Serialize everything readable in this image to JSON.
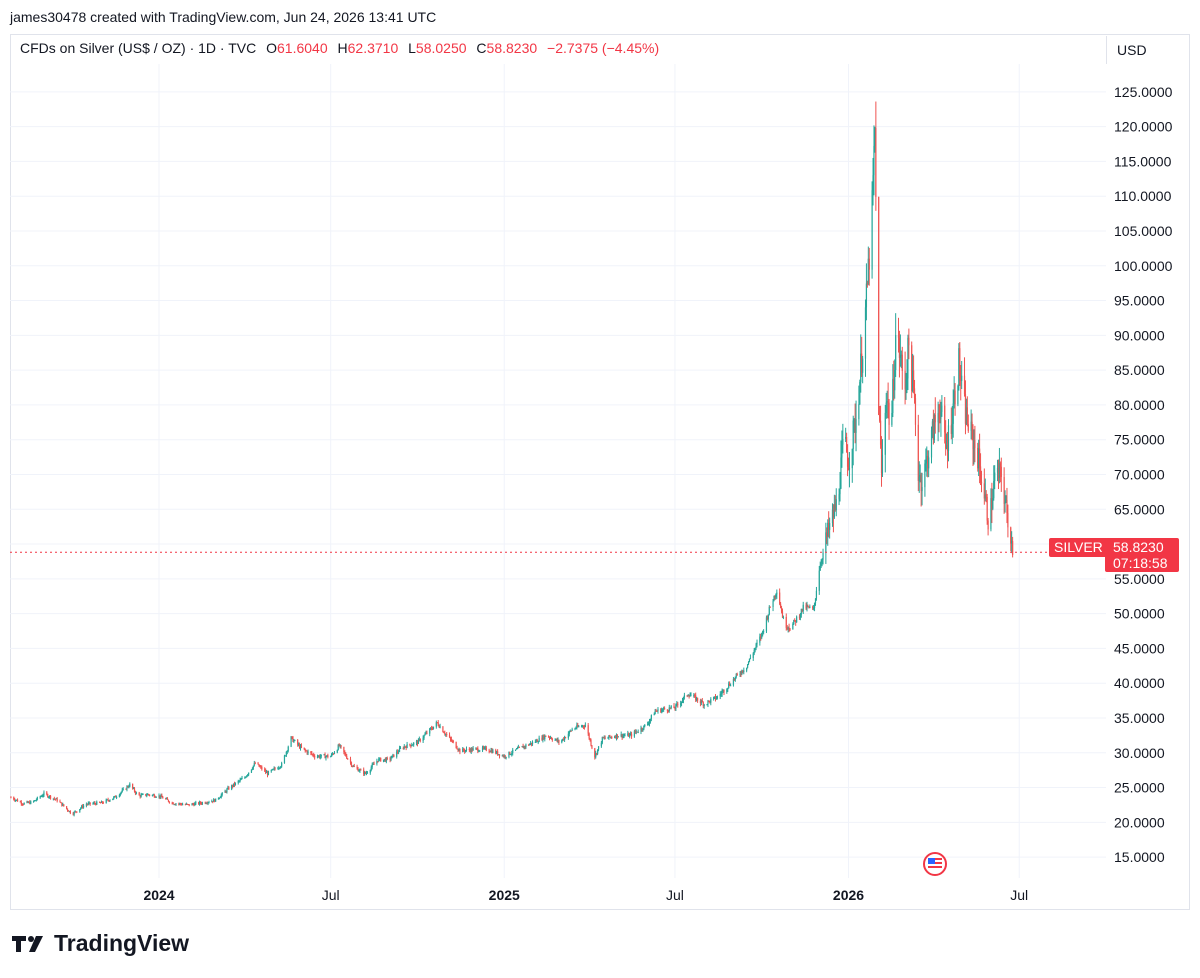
{
  "created_by": "james30478 created with TradingView.com, Jun 24, 2026 13:41 UTC",
  "legend": {
    "symbol": "CFDs on Silver (US$ / OZ) · 1D · TVC",
    "open_label": "O",
    "open": "61.6040",
    "high_label": "H",
    "high": "62.3710",
    "low_label": "L",
    "low": "58.0250",
    "close_label": "C",
    "close": "58.8230",
    "change": "−2.7375 (−4.45%)"
  },
  "currency": "USD",
  "price_tag": {
    "name": "SILVER",
    "price": "58.8230",
    "countdown": "07:18:58"
  },
  "brand": "TradingView",
  "colors": {
    "up": "#26a69a",
    "down": "#ef5350",
    "grid": "#f0f3fa",
    "last": "#f23645"
  },
  "chart_data": {
    "type": "candlestick",
    "y_ticks": [
      "15.0000",
      "20.0000",
      "25.0000",
      "30.0000",
      "35.0000",
      "40.0000",
      "45.0000",
      "50.0000",
      "55.0000",
      "60.0000",
      "65.0000",
      "70.0000",
      "75.0000",
      "80.0000",
      "85.0000",
      "90.0000",
      "95.0000",
      "100.0000",
      "105.0000",
      "110.0000",
      "115.0000",
      "120.0000",
      "125.0000"
    ],
    "ylim": [
      12,
      129
    ],
    "x_ticks": [
      {
        "label": "2024",
        "date": "2024-01-01",
        "bold": true
      },
      {
        "label": "Jul",
        "date": "2024-07-01",
        "bold": false
      },
      {
        "label": "2025",
        "date": "2025-01-01",
        "bold": true
      },
      {
        "label": "Jul",
        "date": "2025-07-01",
        "bold": false
      },
      {
        "label": "2026",
        "date": "2026-01-01",
        "bold": true
      },
      {
        "label": "Jul",
        "date": "2026-07-01",
        "bold": false
      }
    ],
    "xlim": [
      "2023-07-27",
      "2026-10-01"
    ],
    "last_price": 58.823,
    "series": [
      {
        "date": "2023-07-28",
        "close": 23.6
      },
      {
        "date": "2023-08-10",
        "close": 22.7
      },
      {
        "date": "2023-08-20",
        "close": 22.9
      },
      {
        "date": "2023-09-01",
        "close": 24.1
      },
      {
        "date": "2023-09-15",
        "close": 23.2
      },
      {
        "date": "2023-10-01",
        "close": 21.2
      },
      {
        "date": "2023-10-15",
        "close": 22.6
      },
      {
        "date": "2023-11-01",
        "close": 22.8
      },
      {
        "date": "2023-11-15",
        "close": 23.6
      },
      {
        "date": "2023-12-01",
        "close": 25.4
      },
      {
        "date": "2023-12-10",
        "close": 23.8
      },
      {
        "date": "2023-12-20",
        "close": 24.0
      },
      {
        "date": "2024-01-01",
        "close": 23.8
      },
      {
        "date": "2024-01-15",
        "close": 22.8
      },
      {
        "date": "2024-02-01",
        "close": 22.5
      },
      {
        "date": "2024-02-15",
        "close": 22.8
      },
      {
        "date": "2024-03-01",
        "close": 23.2
      },
      {
        "date": "2024-03-15",
        "close": 24.9
      },
      {
        "date": "2024-04-01",
        "close": 26.5
      },
      {
        "date": "2024-04-12",
        "close": 28.5
      },
      {
        "date": "2024-04-25",
        "close": 27.0
      },
      {
        "date": "2024-05-10",
        "close": 28.3
      },
      {
        "date": "2024-05-20",
        "close": 32.1
      },
      {
        "date": "2024-06-01",
        "close": 30.5
      },
      {
        "date": "2024-06-15",
        "close": 29.5
      },
      {
        "date": "2024-07-01",
        "close": 29.5
      },
      {
        "date": "2024-07-10",
        "close": 31.0
      },
      {
        "date": "2024-07-25",
        "close": 28.0
      },
      {
        "date": "2024-08-07",
        "close": 27.0
      },
      {
        "date": "2024-08-20",
        "close": 29.0
      },
      {
        "date": "2024-09-01",
        "close": 29.0
      },
      {
        "date": "2024-09-15",
        "close": 30.8
      },
      {
        "date": "2024-10-01",
        "close": 31.5
      },
      {
        "date": "2024-10-22",
        "close": 34.3
      },
      {
        "date": "2024-11-01",
        "close": 32.5
      },
      {
        "date": "2024-11-15",
        "close": 30.3
      },
      {
        "date": "2024-12-01",
        "close": 30.5
      },
      {
        "date": "2024-12-15",
        "close": 30.5
      },
      {
        "date": "2025-01-01",
        "close": 29.5
      },
      {
        "date": "2025-01-15",
        "close": 30.5
      },
      {
        "date": "2025-02-01",
        "close": 31.5
      },
      {
        "date": "2025-02-15",
        "close": 32.5
      },
      {
        "date": "2025-03-01",
        "close": 31.5
      },
      {
        "date": "2025-03-15",
        "close": 33.5
      },
      {
        "date": "2025-03-28",
        "close": 34.0
      },
      {
        "date": "2025-04-07",
        "close": 29.5
      },
      {
        "date": "2025-04-15",
        "close": 32.0
      },
      {
        "date": "2025-05-01",
        "close": 32.5
      },
      {
        "date": "2025-05-15",
        "close": 32.5
      },
      {
        "date": "2025-06-01",
        "close": 34.0
      },
      {
        "date": "2025-06-10",
        "close": 36.0
      },
      {
        "date": "2025-07-01",
        "close": 36.5
      },
      {
        "date": "2025-07-15",
        "close": 38.5
      },
      {
        "date": "2025-08-01",
        "close": 37.0
      },
      {
        "date": "2025-08-15",
        "close": 38.0
      },
      {
        "date": "2025-09-01",
        "close": 40.5
      },
      {
        "date": "2025-09-15",
        "close": 42.5
      },
      {
        "date": "2025-10-01",
        "close": 47.0
      },
      {
        "date": "2025-10-10",
        "close": 51.0
      },
      {
        "date": "2025-10-17",
        "close": 53.5
      },
      {
        "date": "2025-10-25",
        "close": 48.5
      },
      {
        "date": "2025-11-01",
        "close": 48.0
      },
      {
        "date": "2025-11-15",
        "close": 51.0
      },
      {
        "date": "2025-11-25",
        "close": 50.5
      },
      {
        "date": "2025-12-01",
        "close": 56.5
      },
      {
        "date": "2025-12-10",
        "close": 61.5
      },
      {
        "date": "2025-12-20",
        "close": 66.0
      },
      {
        "date": "2025-12-27",
        "close": 75.0
      },
      {
        "date": "2026-01-01",
        "close": 72.0
      },
      {
        "date": "2026-01-10",
        "close": 79.0
      },
      {
        "date": "2026-01-20",
        "close": 95.0
      },
      {
        "date": "2026-01-26",
        "close": 108.0
      },
      {
        "date": "2026-01-29",
        "close": 119.0
      },
      {
        "date": "2026-02-02",
        "close": 80.0
      },
      {
        "date": "2026-02-05",
        "close": 70.0
      },
      {
        "date": "2026-02-10",
        "close": 82.0
      },
      {
        "date": "2026-02-15",
        "close": 76.0
      },
      {
        "date": "2026-02-20",
        "close": 90.0
      },
      {
        "date": "2026-02-25",
        "close": 87.0
      },
      {
        "date": "2026-03-01",
        "close": 82.0
      },
      {
        "date": "2026-03-06",
        "close": 88.5
      },
      {
        "date": "2026-03-12",
        "close": 80.0
      },
      {
        "date": "2026-03-16",
        "close": 70.5
      },
      {
        "date": "2026-03-20",
        "close": 69.0
      },
      {
        "date": "2026-03-25",
        "close": 72.0
      },
      {
        "date": "2026-04-01",
        "close": 76.5
      },
      {
        "date": "2026-04-08",
        "close": 80.0
      },
      {
        "date": "2026-04-14",
        "close": 73.5
      },
      {
        "date": "2026-04-20",
        "close": 78.0
      },
      {
        "date": "2026-04-28",
        "close": 86.0
      },
      {
        "date": "2026-05-03",
        "close": 80.0
      },
      {
        "date": "2026-05-10",
        "close": 76.0
      },
      {
        "date": "2026-05-17",
        "close": 73.5
      },
      {
        "date": "2026-05-24",
        "close": 68.0
      },
      {
        "date": "2026-05-30",
        "close": 63.0
      },
      {
        "date": "2026-06-05",
        "close": 69.5
      },
      {
        "date": "2026-06-12",
        "close": 70.0
      },
      {
        "date": "2026-06-18",
        "close": 64.0
      },
      {
        "date": "2026-06-22",
        "close": 61.6
      },
      {
        "date": "2026-06-24",
        "close": 58.823
      }
    ]
  }
}
